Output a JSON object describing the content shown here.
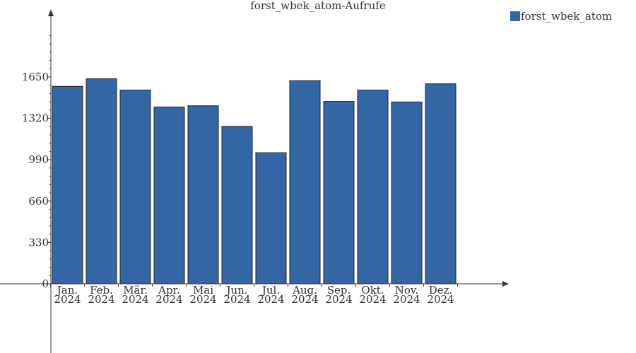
{
  "chart_data": {
    "type": "bar",
    "title": "forst_wbek_atom-Aufrufe",
    "xlabel": "",
    "ylabel": "",
    "categories": [
      [
        "Jan.",
        "2024"
      ],
      [
        "Feb.",
        "2024"
      ],
      [
        "Mär.",
        "2024"
      ],
      [
        "Apr.",
        "2024"
      ],
      [
        "Mai",
        "2024"
      ],
      [
        "Jun.",
        "2024"
      ],
      [
        "Jul.",
        "2024"
      ],
      [
        "Aug.",
        "2024"
      ],
      [
        "Sep.",
        "2024"
      ],
      [
        "Okt.",
        "2024"
      ],
      [
        "Nov.",
        "2024"
      ],
      [
        "Dez.",
        "2024"
      ]
    ],
    "series": [
      {
        "name": "forst_wbek_atom",
        "color": "#3465a4",
        "values": [
          1575,
          1635,
          1545,
          1410,
          1420,
          1255,
          1045,
          1620,
          1455,
          1545,
          1450,
          1595
        ]
      }
    ],
    "y_ticks": [
      0,
      330,
      660,
      990,
      1320,
      1650
    ],
    "ylim": [
      0,
      2150
    ],
    "grid": false,
    "legend": "top-right"
  }
}
